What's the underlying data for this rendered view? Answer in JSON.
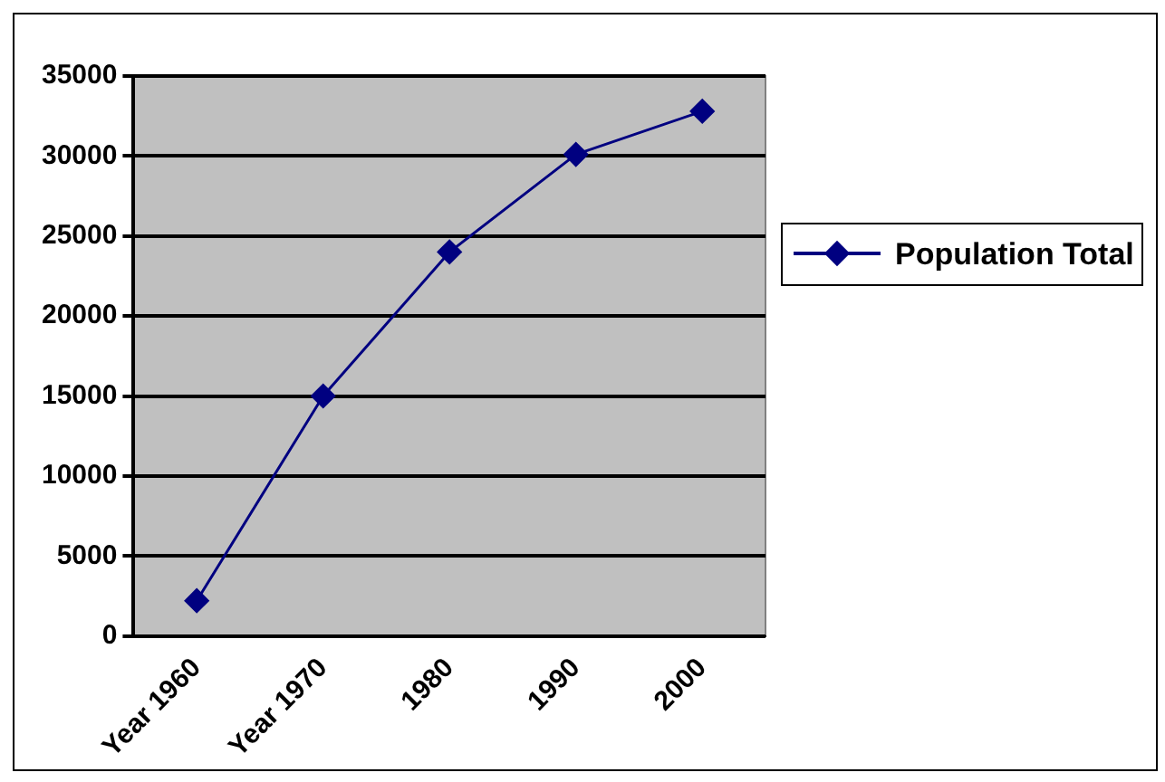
{
  "chart_data": {
    "type": "line",
    "categories": [
      "Year 1960",
      "Year 1970",
      "1980",
      "1990",
      "2000"
    ],
    "series": [
      {
        "name": "Population Total",
        "color": "#000080",
        "values": [
          2200,
          15000,
          24000,
          30100,
          32800
        ]
      }
    ],
    "ylim": [
      0,
      35000
    ],
    "yticks": [
      0,
      5000,
      10000,
      15000,
      20000,
      25000,
      30000,
      35000
    ],
    "grid": "y",
    "legend": "right",
    "marker": "diamond",
    "line_style": "solid"
  }
}
